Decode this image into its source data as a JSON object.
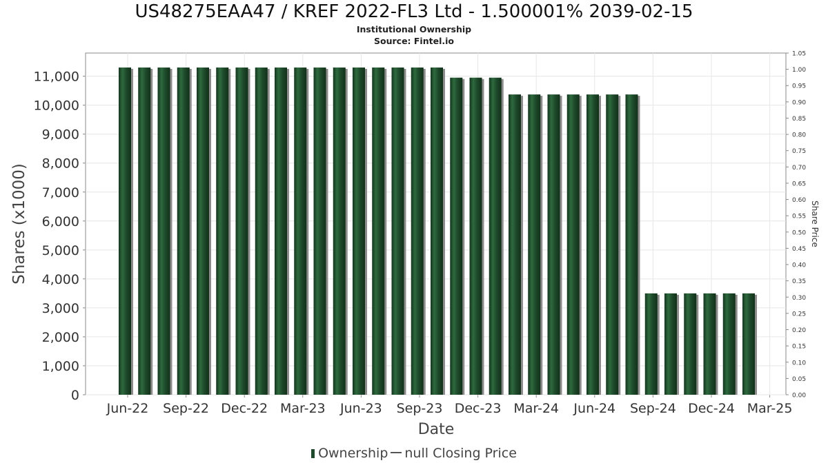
{
  "chart_data": {
    "type": "bar",
    "title": "US48275EAA47 / KREF 2022-FL3 Ltd - 1.500001% 2039-02-15",
    "subtitle_lines": [
      "Institutional Ownership",
      "Source: Fintel.io"
    ],
    "xlabel": "Date",
    "ylabel": "Shares (x1000)",
    "y2label": "Share Price",
    "ylim": [
      0,
      11800
    ],
    "y2lim": [
      0,
      1.05
    ],
    "yticks": [
      "0",
      "1,000",
      "2,000",
      "3,000",
      "4,000",
      "5,000",
      "6,000",
      "7,000",
      "8,000",
      "9,000",
      "10,000",
      "11,000"
    ],
    "y2ticks": [
      "0.00",
      "0.05",
      "0.10",
      "0.15",
      "0.20",
      "0.25",
      "0.30",
      "0.35",
      "0.40",
      "0.45",
      "0.50",
      "0.55",
      "0.60",
      "0.65",
      "0.70",
      "0.75",
      "0.80",
      "0.85",
      "0.90",
      "0.95",
      "1.00",
      "1.05"
    ],
    "xticks": [
      "Jun-22",
      "Sep-22",
      "Dec-22",
      "Mar-23",
      "Jun-23",
      "Sep-23",
      "Dec-23",
      "Mar-24",
      "Jun-24",
      "Sep-24",
      "Dec-24",
      "Mar-25"
    ],
    "grid": true,
    "legend_position": "bottom",
    "series": [
      {
        "name": "Ownership",
        "color": "#1e4a2b",
        "values": [
          11300,
          11300,
          11300,
          11300,
          11300,
          11300,
          11300,
          11300,
          11300,
          11300,
          11300,
          11300,
          11300,
          11300,
          11300,
          11300,
          11300,
          10950,
          10950,
          10950,
          10370,
          10370,
          10370,
          10370,
          10370,
          10370,
          10370,
          3500,
          3500,
          3500,
          3500,
          3500,
          3500
        ]
      },
      {
        "name": "null Closing Price",
        "color": "#555555",
        "values": []
      }
    ]
  }
}
